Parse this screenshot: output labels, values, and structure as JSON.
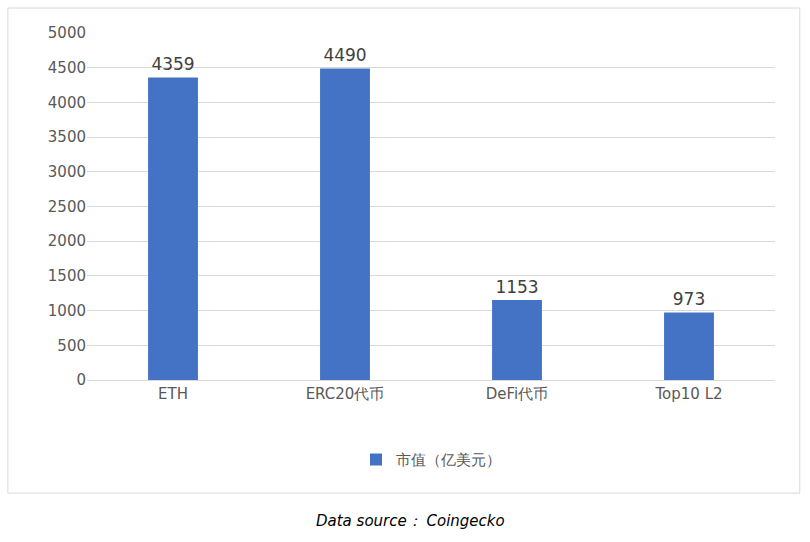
{
  "chart_data": {
    "type": "bar",
    "categories": [
      "ETH",
      "ERC20代币",
      "DeFi代币",
      "Top10 L2"
    ],
    "series": [
      {
        "name": "市值（亿美元）",
        "color": "#4472c4",
        "values": [
          4359,
          4490,
          1153,
          973
        ]
      }
    ],
    "ylim": [
      0,
      5000
    ],
    "yticks": [
      0,
      500,
      1000,
      1500,
      2000,
      2500,
      3000,
      3500,
      4000,
      4500,
      5000
    ],
    "grid": true,
    "data_labels": true,
    "legend": "bottom",
    "annotations": [
      "Data source： Coingecko"
    ]
  }
}
